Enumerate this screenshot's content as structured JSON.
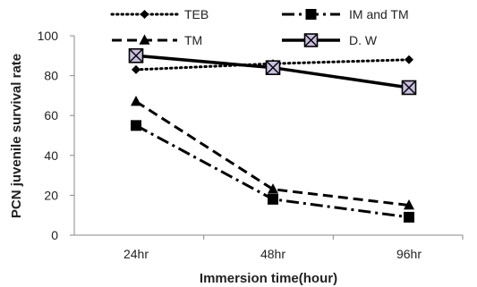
{
  "chart_data": {
    "type": "line",
    "categories": [
      "24hr",
      "48hr",
      "96hr"
    ],
    "xlabel": "Immersion time(hour)",
    "ylabel": "PCN juvenile survival rate",
    "ylim": [
      0,
      100
    ],
    "yticks": [
      0,
      20,
      40,
      60,
      80,
      100
    ],
    "grid": false,
    "legend": "top",
    "series": [
      {
        "name": "TEB",
        "values": [
          83,
          86,
          88
        ],
        "marker": "diamond",
        "dash": "dotted"
      },
      {
        "name": "IM and TM",
        "values": [
          55,
          18,
          9
        ],
        "marker": "square",
        "dash": "dash-dot"
      },
      {
        "name": "TM",
        "values": [
          67,
          23,
          15
        ],
        "marker": "triangle",
        "dash": "dashed"
      },
      {
        "name": "D.  W",
        "values": [
          90,
          84,
          74
        ],
        "marker": "x-square",
        "dash": "solid"
      }
    ]
  }
}
